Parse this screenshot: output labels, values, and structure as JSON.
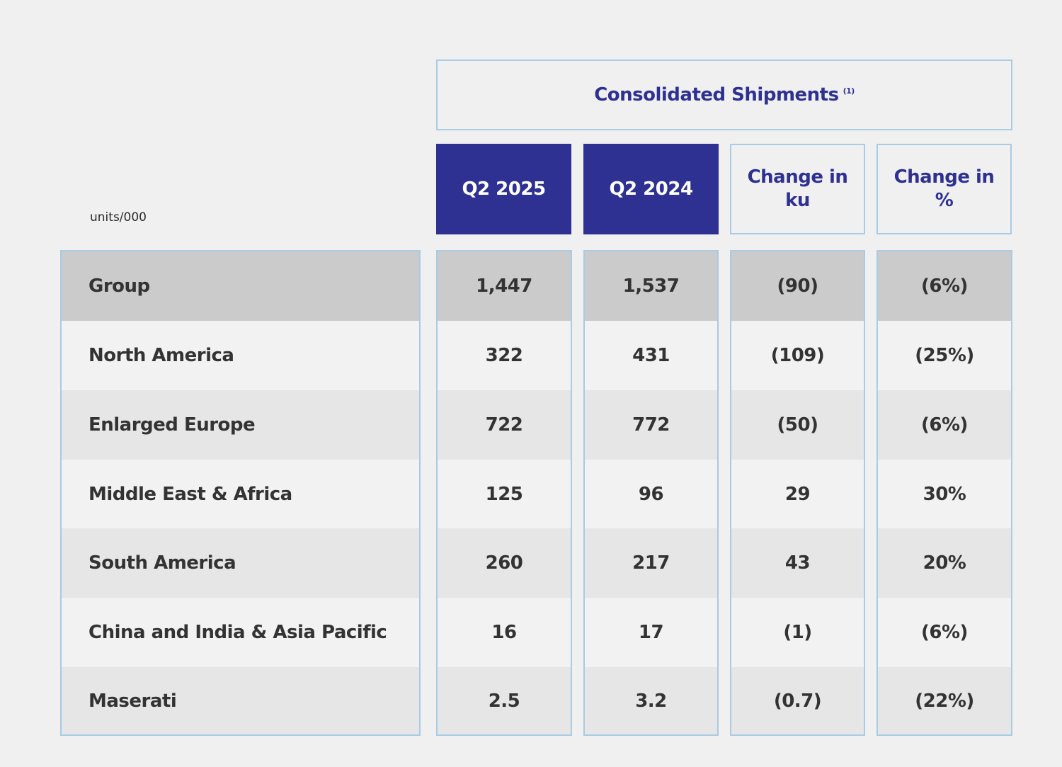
{
  "chart_data": {
    "type": "table",
    "title": "Consolidated Shipments",
    "title_footnote": "(1)",
    "units": "units/000",
    "columns": [
      "Q2 2025",
      "Q2 2024",
      "Change in ku",
      "Change in %"
    ],
    "column_lines": [
      [
        "Q2 2025"
      ],
      [
        "Q2 2024"
      ],
      [
        "Change in",
        "ku"
      ],
      [
        "Change in",
        "%"
      ]
    ],
    "rows": [
      {
        "label": "Group",
        "cells": [
          "1,447",
          "1,537",
          "(90)",
          "(6%)"
        ]
      },
      {
        "label": "North America",
        "cells": [
          "322",
          "431",
          "(109)",
          "(25%)"
        ]
      },
      {
        "label": "Enlarged Europe",
        "cells": [
          "722",
          "772",
          "(50)",
          "(6%)"
        ]
      },
      {
        "label": "Middle East & Africa",
        "cells": [
          "125",
          "96",
          "29",
          "30%"
        ]
      },
      {
        "label": "South America",
        "cells": [
          "260",
          "217",
          "43",
          "20%"
        ]
      },
      {
        "label": "China and India & Asia Pacific",
        "cells": [
          "16",
          "17",
          "(1)",
          "(6%)"
        ]
      },
      {
        "label": "Maserati",
        "cells": [
          "2.5",
          "3.2",
          "(0.7)",
          "(22%)"
        ]
      }
    ]
  },
  "colors": {
    "accent": "#2e3192",
    "border": "#a9cbe3",
    "group_row": "#cbcbcb",
    "row_light": "#f2f2f2",
    "row_dark": "#e6e6e6",
    "background": "#f0f0f0"
  }
}
